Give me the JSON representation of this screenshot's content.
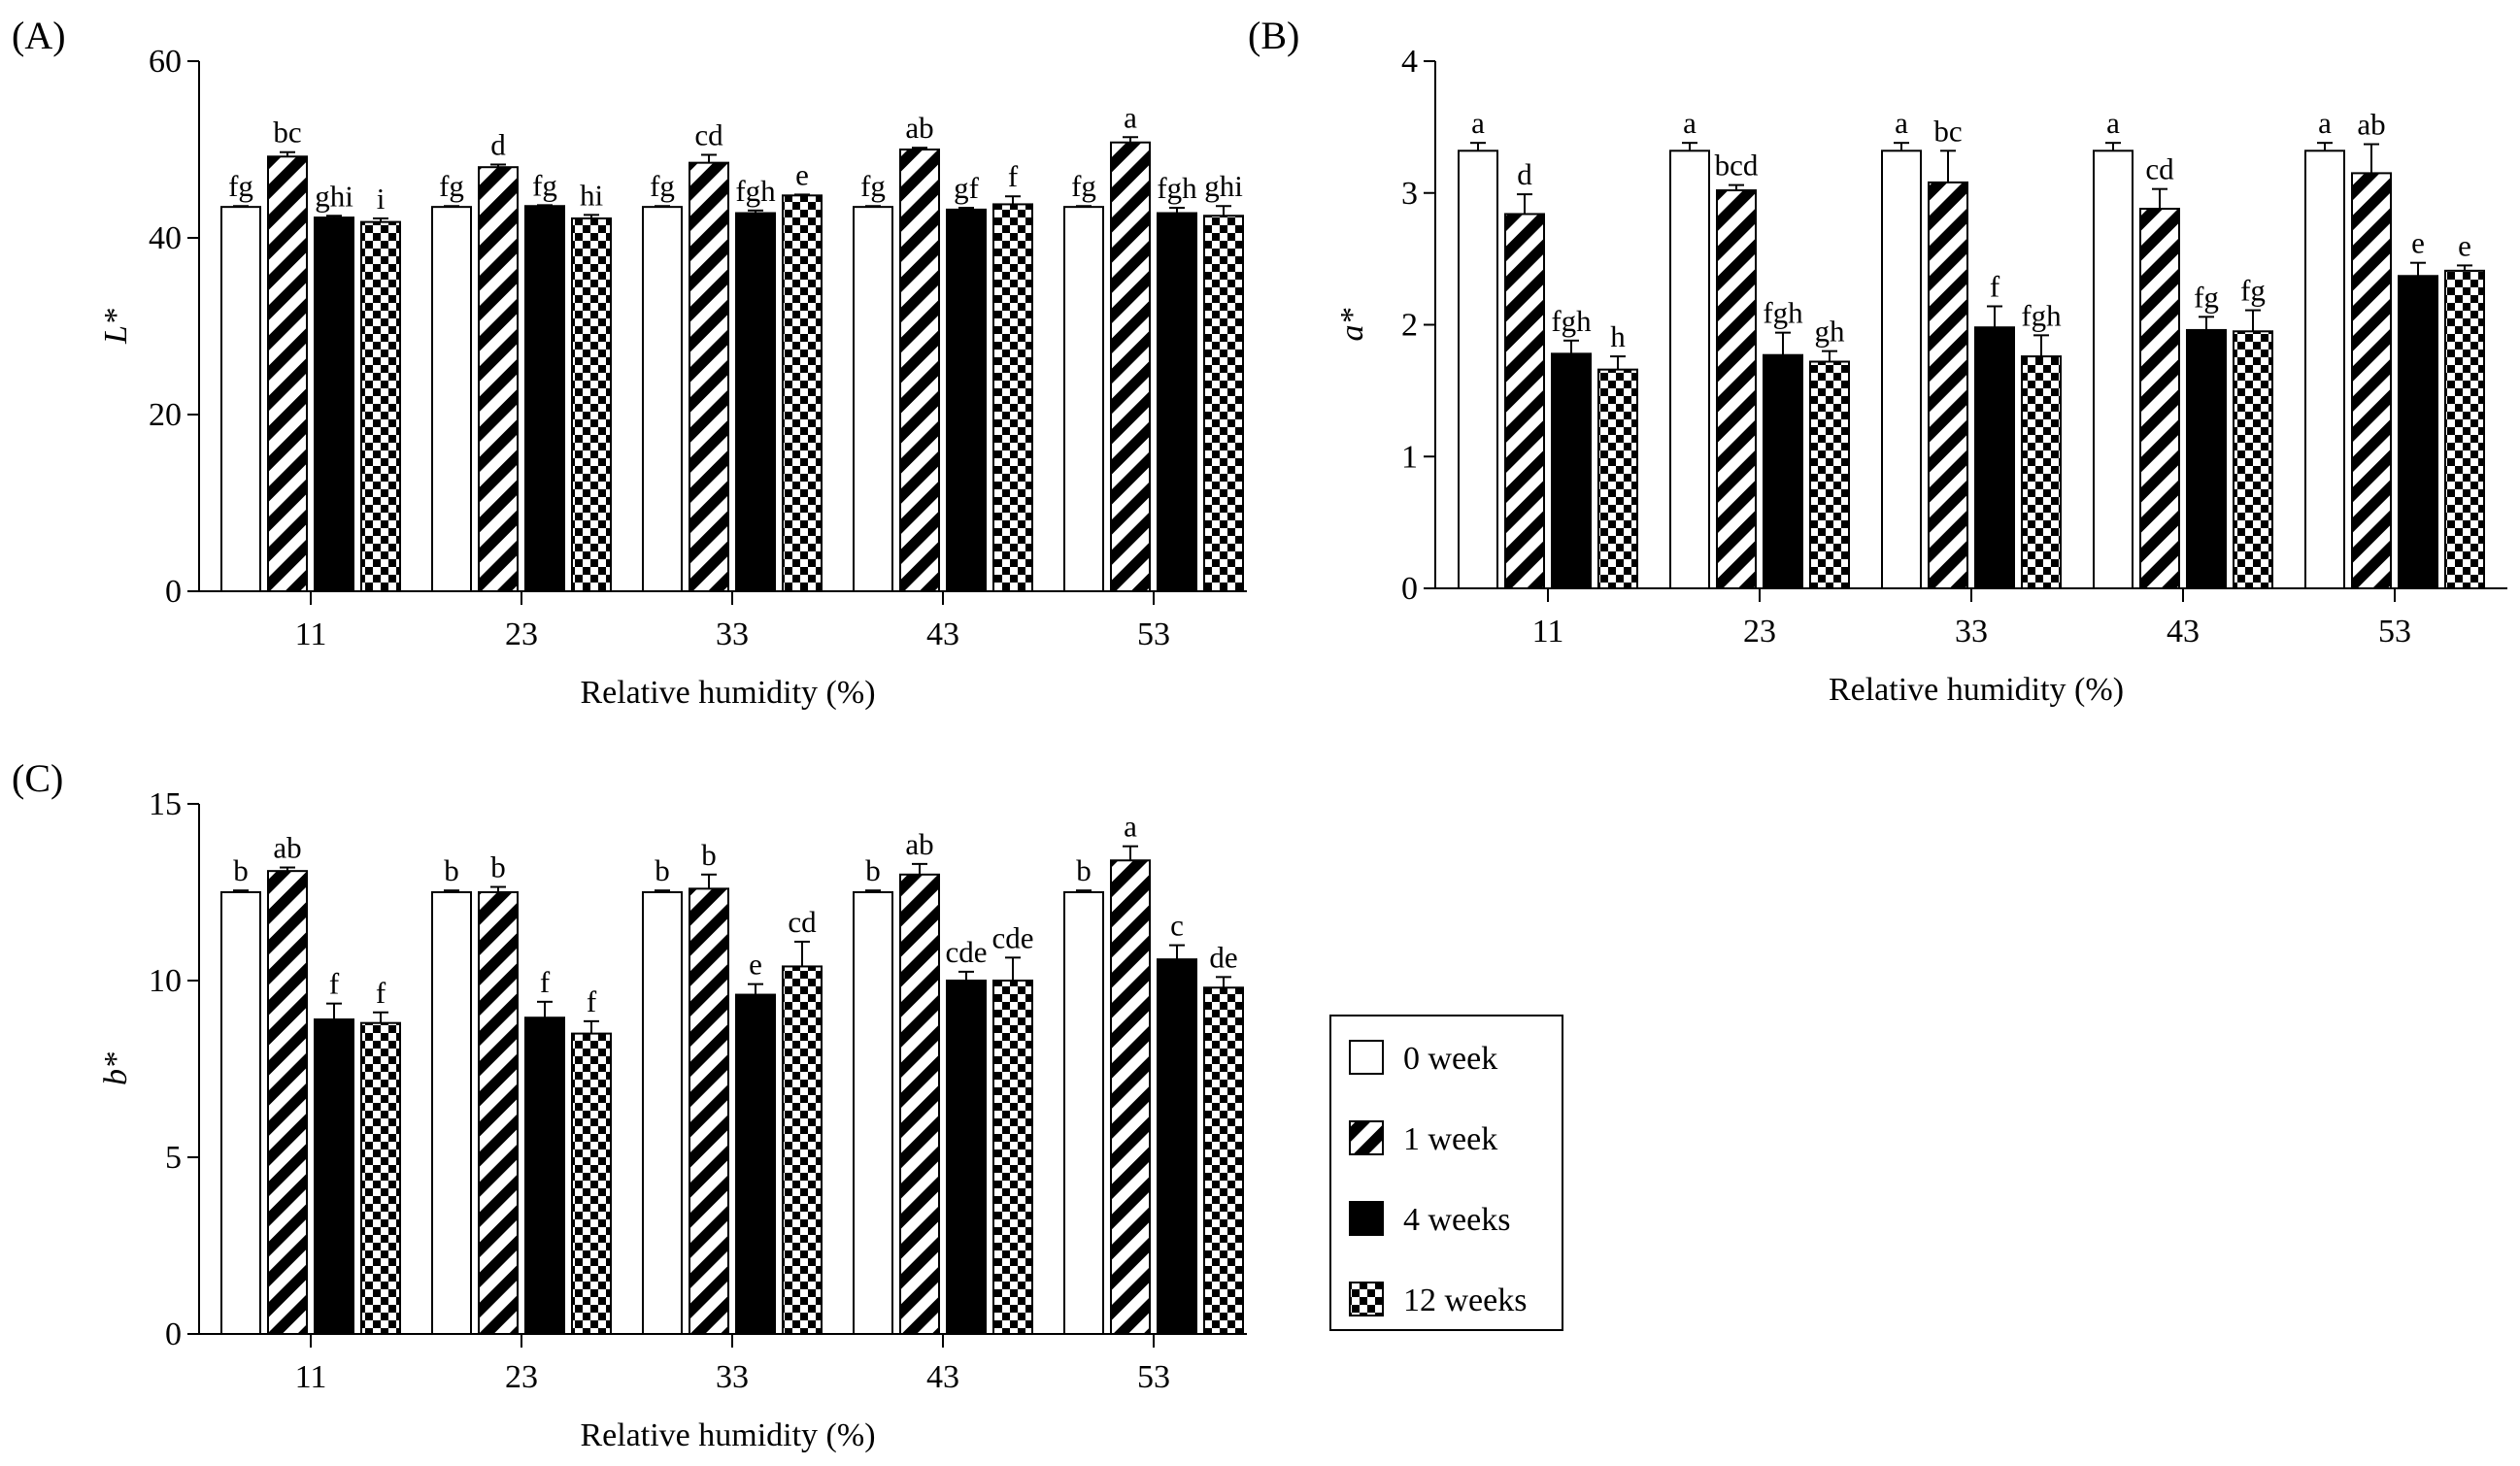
{
  "legend": [
    "0 week",
    "1 week",
    "4 weeks",
    "12 weeks"
  ],
  "colors": {
    "axis": "#000000",
    "background": "#ffffff"
  },
  "chart_data": [
    {
      "type": "bar",
      "panel": "(A)",
      "ylabel": "L*",
      "xlabel": "Relative humidity (%)",
      "categories": [
        "11",
        "23",
        "33",
        "43",
        "53"
      ],
      "ylim": [
        0,
        60
      ],
      "yticks": [
        0,
        20,
        40,
        60
      ],
      "series": [
        {
          "name": "0 week",
          "values": [
            43.5,
            43.5,
            43.5,
            43.5,
            43.5
          ],
          "errors": [
            0.1,
            0.1,
            0.1,
            0.1,
            0.1
          ],
          "letters": [
            "fg",
            "fg",
            "fg",
            "fg",
            "fg"
          ]
        },
        {
          "name": "1 week",
          "values": [
            49.2,
            48.0,
            48.5,
            50.0,
            50.8
          ],
          "errors": [
            0.5,
            0.3,
            0.9,
            0.2,
            0.6
          ],
          "letters": [
            "bc",
            "d",
            "cd",
            "ab",
            "a"
          ]
        },
        {
          "name": "4 weeks",
          "values": [
            42.3,
            43.6,
            42.8,
            43.2,
            42.8
          ],
          "errors": [
            0.2,
            0.1,
            0.3,
            0.2,
            0.6
          ],
          "letters": [
            "ghi",
            "fg",
            "fgh",
            "gf",
            "fgh"
          ]
        },
        {
          "name": "12 weeks",
          "values": [
            41.8,
            42.2,
            44.8,
            43.8,
            42.5
          ],
          "errors": [
            0.4,
            0.4,
            0.1,
            0.9,
            1.1
          ],
          "letters": [
            "i",
            "hi",
            "e",
            "f",
            "ghi"
          ]
        }
      ]
    },
    {
      "type": "bar",
      "panel": "(B)",
      "ylabel": "a*",
      "xlabel": "Relative humidity (%)",
      "categories": [
        "11",
        "23",
        "33",
        "43",
        "53"
      ],
      "ylim": [
        0,
        4
      ],
      "yticks": [
        0,
        1,
        2,
        3,
        4
      ],
      "series": [
        {
          "name": "0 week",
          "values": [
            3.32,
            3.32,
            3.32,
            3.32,
            3.32
          ],
          "errors": [
            0.06,
            0.06,
            0.06,
            0.06,
            0.06
          ],
          "letters": [
            "a",
            "a",
            "a",
            "a",
            "a"
          ]
        },
        {
          "name": "1 week",
          "values": [
            2.84,
            3.02,
            3.08,
            2.88,
            3.15
          ],
          "errors": [
            0.15,
            0.04,
            0.24,
            0.15,
            0.22
          ],
          "letters": [
            "d",
            "bcd",
            "bc",
            "cd",
            "ab"
          ]
        },
        {
          "name": "4 weeks",
          "values": [
            1.78,
            1.77,
            1.98,
            1.96,
            2.37
          ],
          "errors": [
            0.1,
            0.17,
            0.16,
            0.1,
            0.1
          ],
          "letters": [
            "fgh",
            "fgh",
            "f",
            "fg",
            "e"
          ]
        },
        {
          "name": "12 weeks",
          "values": [
            1.66,
            1.72,
            1.76,
            1.95,
            2.41
          ],
          "errors": [
            0.1,
            0.08,
            0.16,
            0.16,
            0.04
          ],
          "letters": [
            "h",
            "gh",
            "fgh",
            "fg",
            "e"
          ]
        }
      ]
    },
    {
      "type": "bar",
      "panel": "(C)",
      "ylabel": "b*",
      "xlabel": "Relative humidity (%)",
      "categories": [
        "11",
        "23",
        "33",
        "43",
        "53"
      ],
      "ylim": [
        0,
        15
      ],
      "yticks": [
        0,
        5,
        10,
        15
      ],
      "series": [
        {
          "name": "0 week",
          "values": [
            12.5,
            12.5,
            12.5,
            12.5,
            12.5
          ],
          "errors": [
            0.05,
            0.05,
            0.05,
            0.05,
            0.05
          ],
          "letters": [
            "b",
            "b",
            "b",
            "b",
            "b"
          ]
        },
        {
          "name": "1 week",
          "values": [
            13.1,
            12.5,
            12.6,
            13.0,
            13.4
          ],
          "errors": [
            0.1,
            0.15,
            0.4,
            0.3,
            0.4
          ],
          "letters": [
            "ab",
            "b",
            "b",
            "ab",
            "a"
          ]
        },
        {
          "name": "4 weeks",
          "values": [
            8.9,
            8.95,
            9.6,
            10.0,
            10.6
          ],
          "errors": [
            0.45,
            0.45,
            0.3,
            0.25,
            0.4
          ],
          "letters": [
            "f",
            "f",
            "e",
            "cde",
            "c"
          ]
        },
        {
          "name": "12 weeks",
          "values": [
            8.8,
            8.5,
            10.4,
            10.0,
            9.8
          ],
          "errors": [
            0.3,
            0.35,
            0.7,
            0.65,
            0.3
          ],
          "letters": [
            "f",
            "f",
            "cd",
            "cde",
            "de"
          ]
        }
      ]
    }
  ]
}
